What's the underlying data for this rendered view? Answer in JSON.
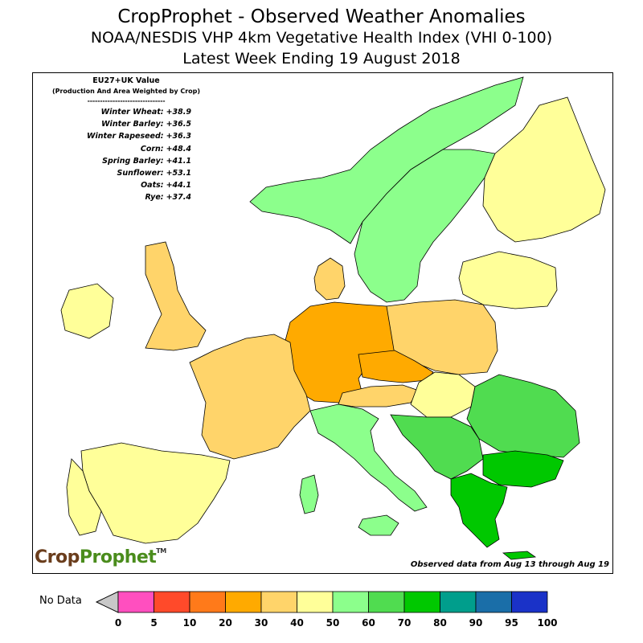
{
  "titles": {
    "line1": "CropProphet - Observed Weather Anomalies",
    "line2": "NOAA/NESDIS VHP 4km Vegetative Health Index (VHI 0-100)",
    "line3": "Latest Week Ending 19 August 2018"
  },
  "summary": {
    "heading": "EU27+UK Value",
    "subheading": "(Production And Area Weighted by Crop)",
    "divider": "-------------------------------",
    "crops": [
      {
        "name": "Winter Wheat:",
        "value": "+38.9"
      },
      {
        "name": "Winter Barley:",
        "value": "+36.5"
      },
      {
        "name": "Winter Rapeseed:",
        "value": "+36.3"
      },
      {
        "name": "Corn:",
        "value": "+48.4"
      },
      {
        "name": "Spring Barley:",
        "value": "+41.1"
      },
      {
        "name": "Sunflower:",
        "value": "+53.1"
      },
      {
        "name": "Oats:",
        "value": "+44.1"
      },
      {
        "name": "Rye:",
        "value": "+37.4"
      }
    ]
  },
  "logo": {
    "part1": "Crop",
    "part2": "Prophet",
    "tm": "TM"
  },
  "observed_note": "Observed data from Aug 13 through Aug 19",
  "legend": {
    "no_data_label": "No Data",
    "no_data_color": "#c8c8c8",
    "ticks": [
      "0",
      "5",
      "10",
      "20",
      "30",
      "40",
      "50",
      "60",
      "70",
      "80",
      "90",
      "95",
      "100"
    ],
    "colors": [
      "#ff4fbf",
      "#ff4a2a",
      "#ff7a1a",
      "#ffaa00",
      "#ffd46a",
      "#ffff99",
      "#8cff8c",
      "#50dc50",
      "#00c800",
      "#009e8c",
      "#1a6ea8",
      "#1a32c8"
    ]
  },
  "regions": [
    {
      "name": "Norway",
      "color": "#8cff8c"
    },
    {
      "name": "Sweden",
      "color": "#8cff8c"
    },
    {
      "name": "Finland",
      "color": "#ffff99"
    },
    {
      "name": "UK",
      "color": "#ffd46a"
    },
    {
      "name": "Ireland",
      "color": "#ffff99"
    },
    {
      "name": "France",
      "color": "#ffd46a"
    },
    {
      "name": "Germany",
      "color": "#ffaa00"
    },
    {
      "name": "Poland",
      "color": "#ffd46a"
    },
    {
      "name": "Spain",
      "color": "#ffff99"
    },
    {
      "name": "Portugal",
      "color": "#ffff99"
    },
    {
      "name": "Italy",
      "color": "#8cff8c"
    },
    {
      "name": "Romania",
      "color": "#50dc50"
    },
    {
      "name": "Bulgaria",
      "color": "#00c800"
    },
    {
      "name": "Greece",
      "color": "#00c800"
    },
    {
      "name": "Baltics",
      "color": "#ffff99"
    },
    {
      "name": "Hungary",
      "color": "#ffff99"
    },
    {
      "name": "Czechia",
      "color": "#ffaa00"
    },
    {
      "name": "Denmark",
      "color": "#ffd46a"
    },
    {
      "name": "Balkans",
      "color": "#50dc50"
    },
    {
      "name": "Austria",
      "color": "#ffd46a"
    }
  ]
}
